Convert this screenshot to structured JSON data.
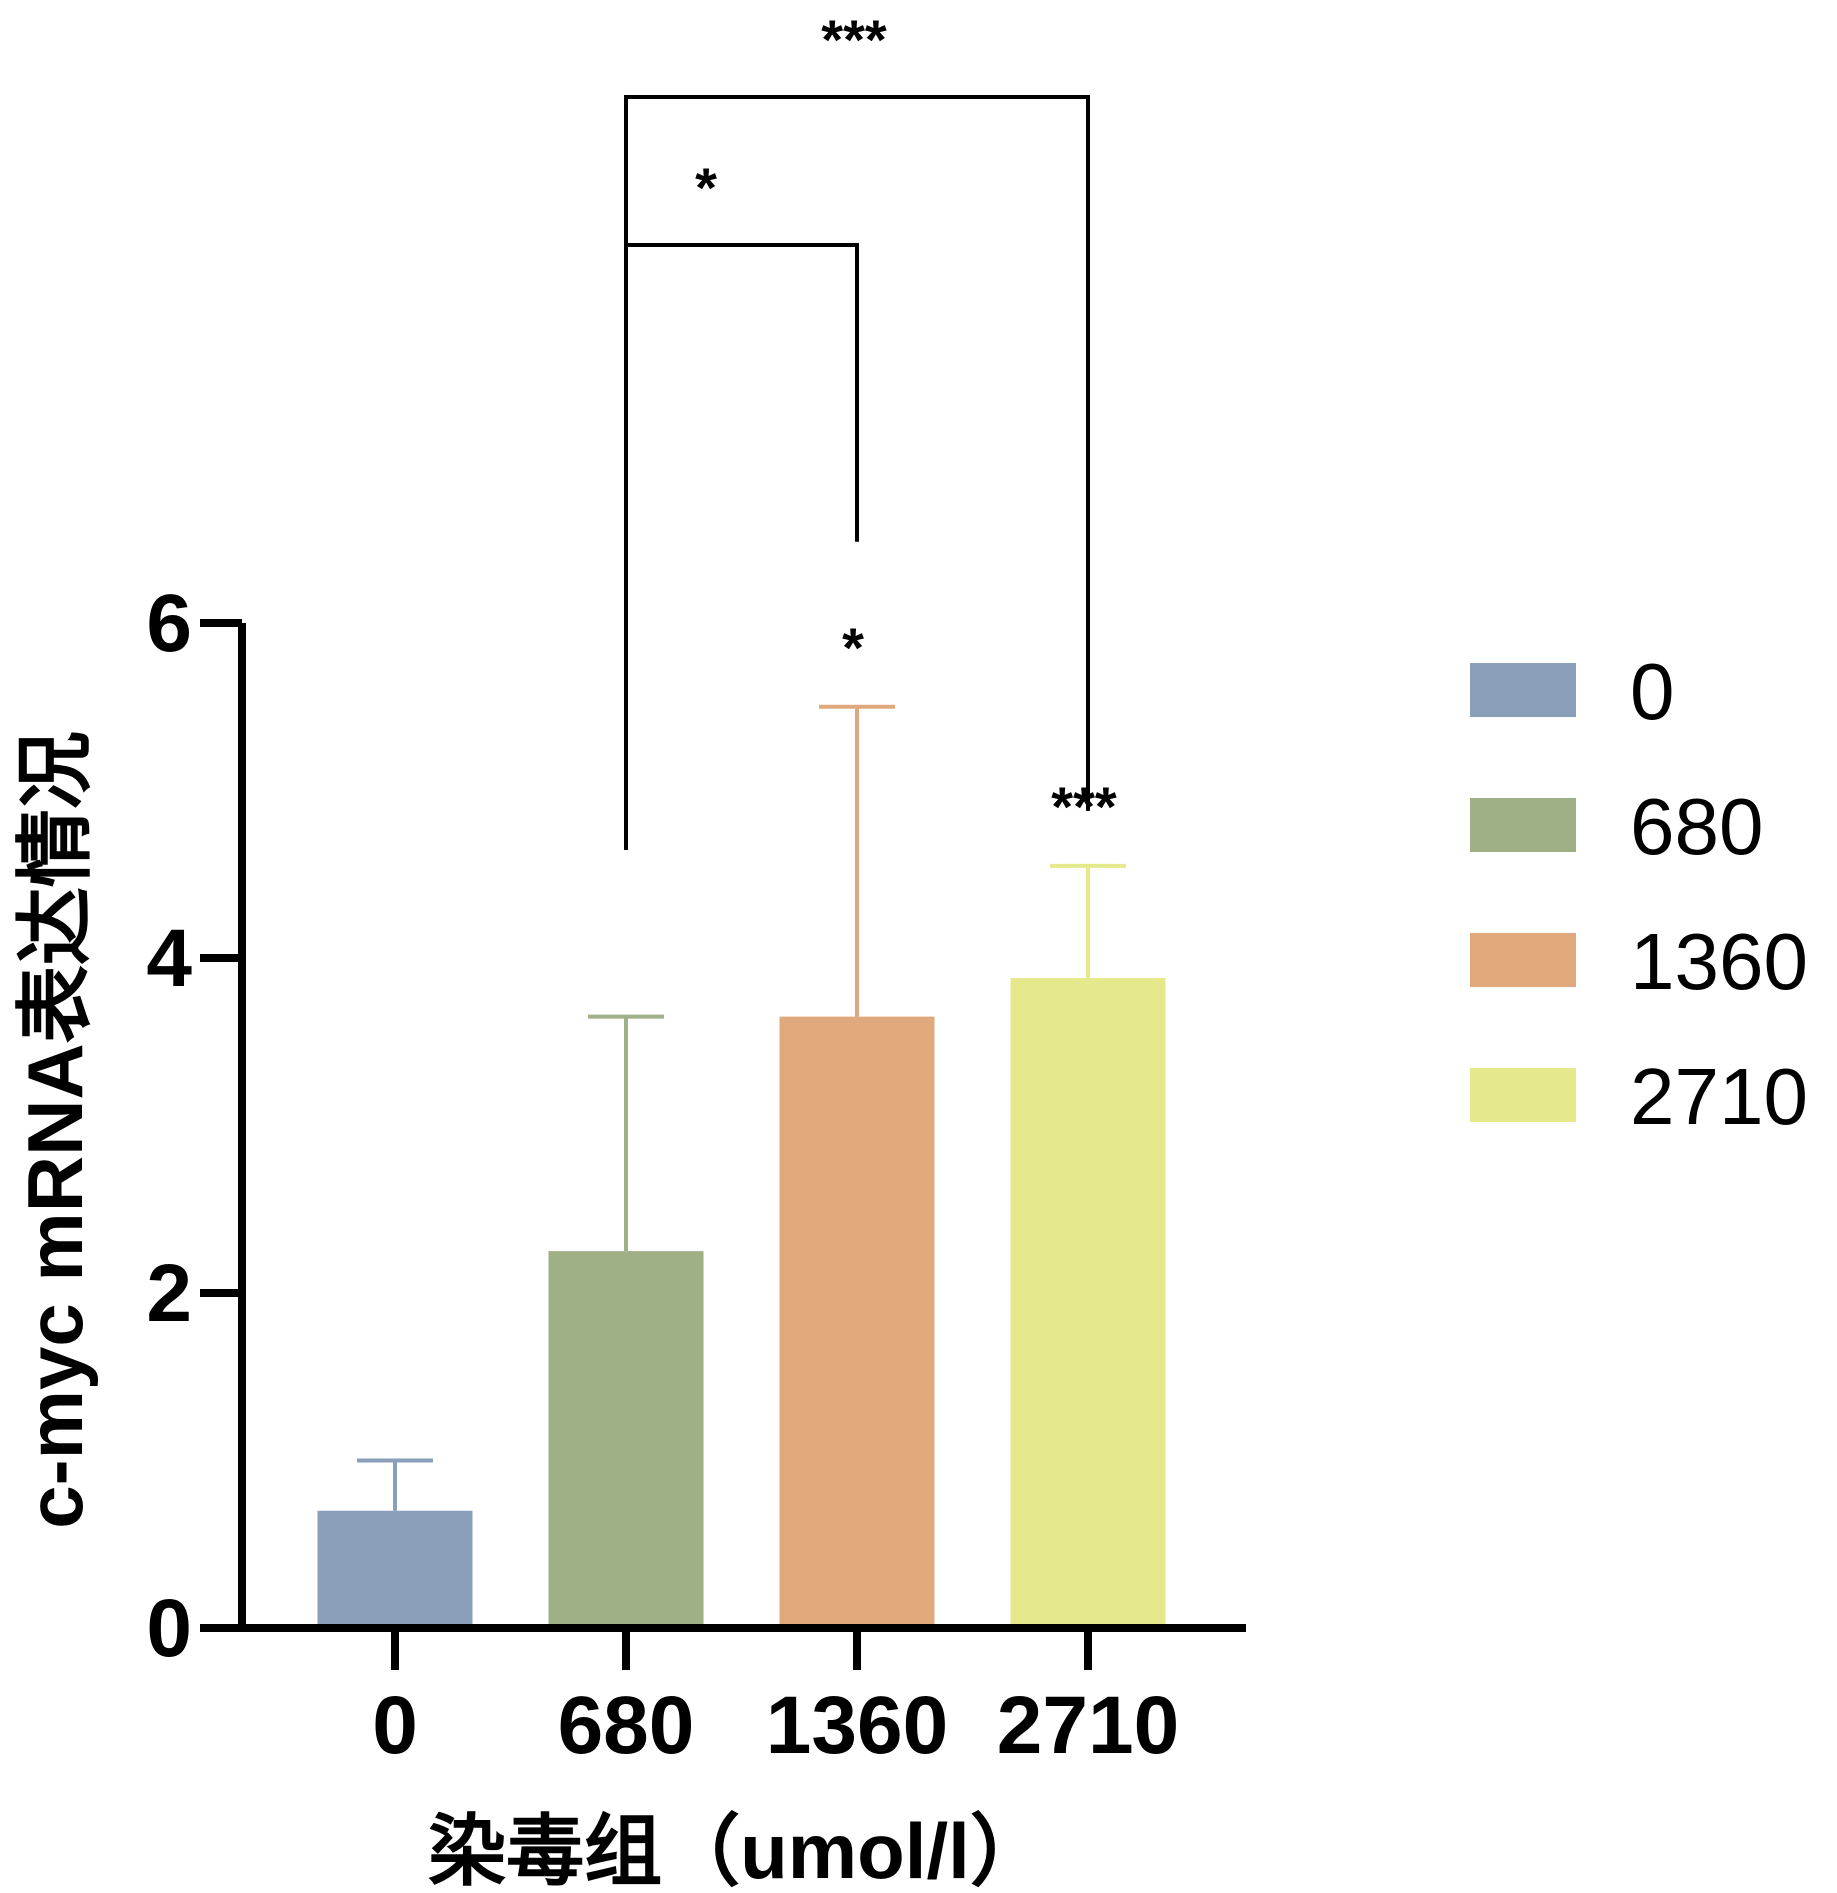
{
  "chart_data": {
    "type": "bar",
    "title": "",
    "xlabel": "染毒组（umol/l）",
    "ylabel": "c-myc mRNA表达情况",
    "ylim": [
      0,
      6
    ],
    "yticks": [
      0,
      2,
      4,
      6
    ],
    "ytick_labels": [
      "0",
      "2",
      "4",
      "6"
    ],
    "categories": [
      "0",
      "680",
      "1360",
      "2710"
    ],
    "values": [
      0.7,
      2.25,
      3.65,
      3.88
    ],
    "errors": [
      0.3,
      1.4,
      1.85,
      0.67
    ],
    "colors": [
      "#8a9fba",
      "#9faf86",
      "#e0a97d",
      "#e6e88c"
    ],
    "bar_significance": [
      "",
      "",
      "*",
      "***"
    ],
    "brackets": [
      {
        "from": "680",
        "to": "1360",
        "label": "*"
      },
      {
        "from": "680",
        "to": "2710",
        "label": "***"
      }
    ],
    "legend": {
      "position": "right",
      "entries": [
        "0",
        "680",
        "1360",
        "2710"
      ]
    }
  }
}
